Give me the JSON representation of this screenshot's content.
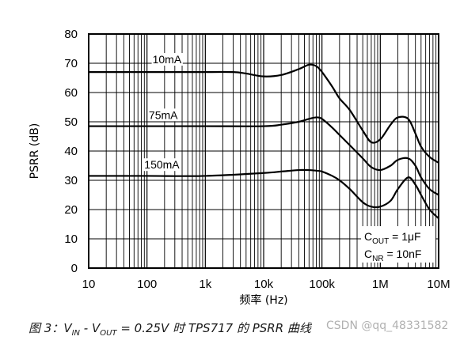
{
  "chart_data": {
    "type": "line",
    "xscale": "log",
    "xlim": [
      10,
      10000000
    ],
    "ylim": [
      0,
      80
    ],
    "xlabel": "频率 (Hz)",
    "ylabel": "PSRR (dB)",
    "x_ticks": [
      10,
      100,
      1000,
      10000,
      100000,
      1000000,
      10000000
    ],
    "x_tick_labels": [
      "10",
      "100",
      "1k",
      "10k",
      "100k",
      "1M",
      "10M"
    ],
    "y_ticks": [
      0,
      10,
      20,
      30,
      40,
      50,
      60,
      70,
      80
    ],
    "y_tick_labels": [
      "0",
      "10",
      "20",
      "30",
      "40",
      "50",
      "60",
      "70",
      "80"
    ],
    "grid": true,
    "series": [
      {
        "name": "10mA",
        "color": "#000000",
        "x": [
          10,
          100,
          1000,
          3000,
          5000,
          10000,
          20000,
          40000,
          60000,
          80000,
          100000,
          150000,
          200000,
          300000,
          500000,
          700000,
          1000000,
          1500000,
          2000000,
          3000000,
          4000000,
          5000000,
          7000000,
          10000000
        ],
        "y": [
          67,
          67,
          67,
          67,
          66.5,
          65.5,
          66,
          68,
          69.5,
          69,
          67,
          62,
          58,
          54,
          47,
          43,
          44,
          49,
          51.5,
          51,
          46,
          41.5,
          38,
          36
        ]
      },
      {
        "name": "75mA",
        "color": "#000000",
        "x": [
          10,
          100,
          1000,
          10000,
          20000,
          40000,
          60000,
          80000,
          100000,
          150000,
          200000,
          300000,
          500000,
          700000,
          1000000,
          1500000,
          2000000,
          3000000,
          4000000,
          5000000,
          7000000,
          10000000
        ],
        "y": [
          48.5,
          48.5,
          48.5,
          48.5,
          49,
          50,
          51,
          51.5,
          51,
          48,
          45.5,
          42,
          37.5,
          34.5,
          33.5,
          35,
          37,
          37.5,
          35,
          31,
          27,
          25
        ]
      },
      {
        "name": "150mA",
        "color": "#000000",
        "x": [
          10,
          100,
          1000,
          10000,
          20000,
          40000,
          60000,
          80000,
          100000,
          150000,
          200000,
          300000,
          500000,
          700000,
          1000000,
          1500000,
          2000000,
          3000000,
          4000000,
          5000000,
          7000000,
          10000000
        ],
        "y": [
          31.5,
          31.5,
          31.5,
          32.5,
          33,
          33.5,
          33.5,
          33.3,
          33,
          31.5,
          30,
          27,
          22.5,
          21,
          21,
          23,
          27,
          31,
          28.5,
          25,
          20,
          17
        ]
      }
    ],
    "curve_labels": [
      {
        "text": "10mA",
        "x": 220,
        "y": 70
      },
      {
        "text": "75mA",
        "x": 190,
        "y": 51
      },
      {
        "text": "150mA",
        "x": 180,
        "y": 34
      }
    ],
    "conditions": {
      "cout": {
        "base": "C",
        "sub": "OUT",
        "rest": " = 1μF"
      },
      "cnr": {
        "base": "C",
        "sub": "NR",
        "rest": " = 10nF"
      }
    }
  },
  "caption": {
    "figure": "图 3：",
    "vin_base": "V",
    "vin_sub": "IN",
    "minus": " - ",
    "vout_base": "V",
    "vout_sub": "OUT",
    "rest": " = 0.25V 时 TPS717 的 PSRR 曲线"
  },
  "watermark": "CSDN @qq_48331582"
}
